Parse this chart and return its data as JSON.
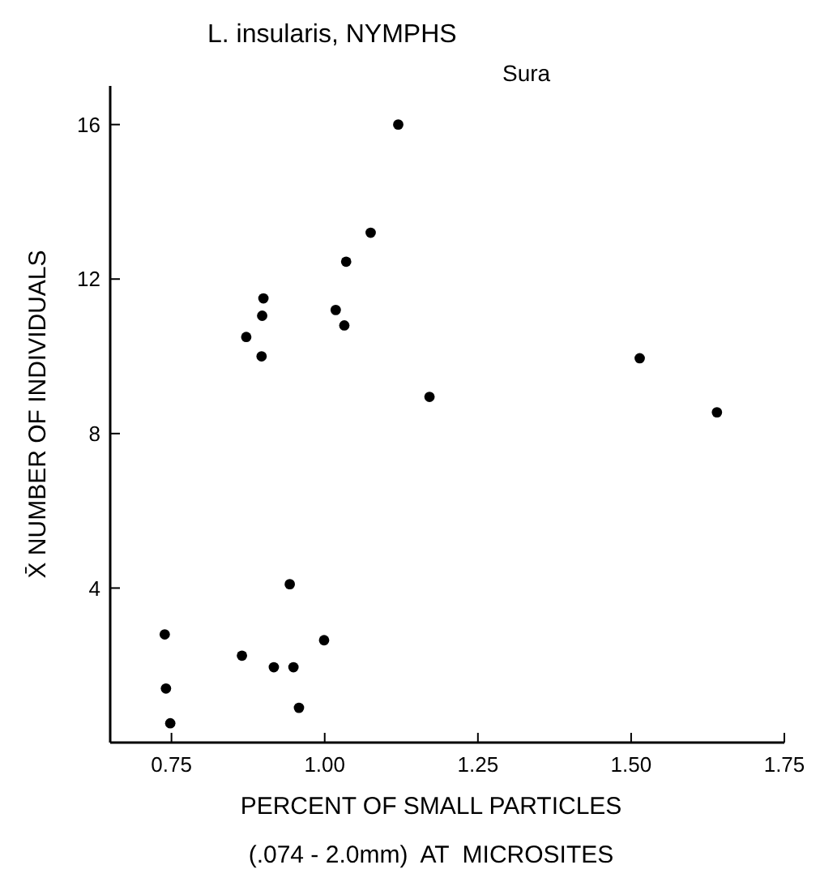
{
  "chart_data": {
    "type": "scatter",
    "title": "L. insularis, NYMPHS",
    "subtitle": "Sura",
    "xlabel": "PERCENT OF SMALL PARTICLES\n(.074 - 2.0mm)  AT  MICROSITES",
    "ylabel": "X̄ NUMBER OF INDIVIDUALS",
    "x": [
      1.12,
      1.075,
      1.035,
      0.9,
      0.898,
      0.872,
      0.897,
      1.018,
      1.032,
      1.514,
      1.171,
      1.64,
      0.943,
      0.739,
      0.741,
      0.748,
      0.865,
      0.917,
      0.949,
      0.958,
      0.999
    ],
    "values": [
      16.0,
      13.2,
      12.45,
      11.5,
      11.05,
      10.5,
      10.0,
      11.2,
      10.8,
      9.95,
      8.95,
      8.55,
      4.1,
      2.8,
      1.4,
      0.5,
      2.25,
      1.95,
      1.95,
      0.9,
      2.65
    ],
    "color": "#000000",
    "marker": "circle",
    "xlim": [
      0.65,
      1.75
    ],
    "xticks": [
      {
        "value": 0.75,
        "label": "0.75"
      },
      {
        "value": 1.0,
        "label": "1.00"
      },
      1.25,
      {
        "value": 1.5,
        "label": "1.50"
      },
      {
        "value": 1.75,
        "label": "1.75"
      }
    ],
    "ylim": [
      0,
      17
    ],
    "yticks": [
      4,
      8,
      12,
      16
    ],
    "grid": false
  }
}
